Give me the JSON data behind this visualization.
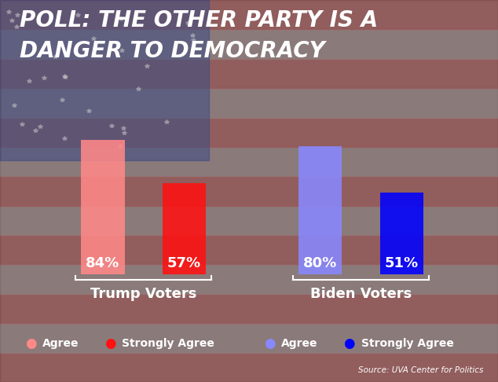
{
  "title_line1": "POLL: THE OTHER PARTY IS A",
  "title_line2": "DANGER TO DEMOCRACY",
  "groups": [
    "Trump Voters",
    "Biden Voters"
  ],
  "agree_values": [
    84,
    80
  ],
  "strongly_agree_values": [
    57,
    51
  ],
  "agree_colors": [
    "#FF8888",
    "#8888FF"
  ],
  "strongly_agree_colors": [
    "#FF1111",
    "#0000FF"
  ],
  "bar_labels": [
    "84%",
    "57%",
    "80%",
    "51%"
  ],
  "legend_items": [
    {
      "label": "Agree",
      "color": "#FF8888"
    },
    {
      "label": "Strongly Agree",
      "color": "#FF1111"
    },
    {
      "label": "Agree",
      "color": "#8888FF"
    },
    {
      "label": "Strongly Agree",
      "color": "#0000FF"
    }
  ],
  "source_text": "Source: UVA Center for Politics",
  "title_color": "#FFFFFF",
  "title_fontsize": 20,
  "label_fontsize": 13,
  "group_fontsize": 12,
  "legend_fontsize": 10,
  "bar_width": 0.32,
  "ylim_max": 100
}
